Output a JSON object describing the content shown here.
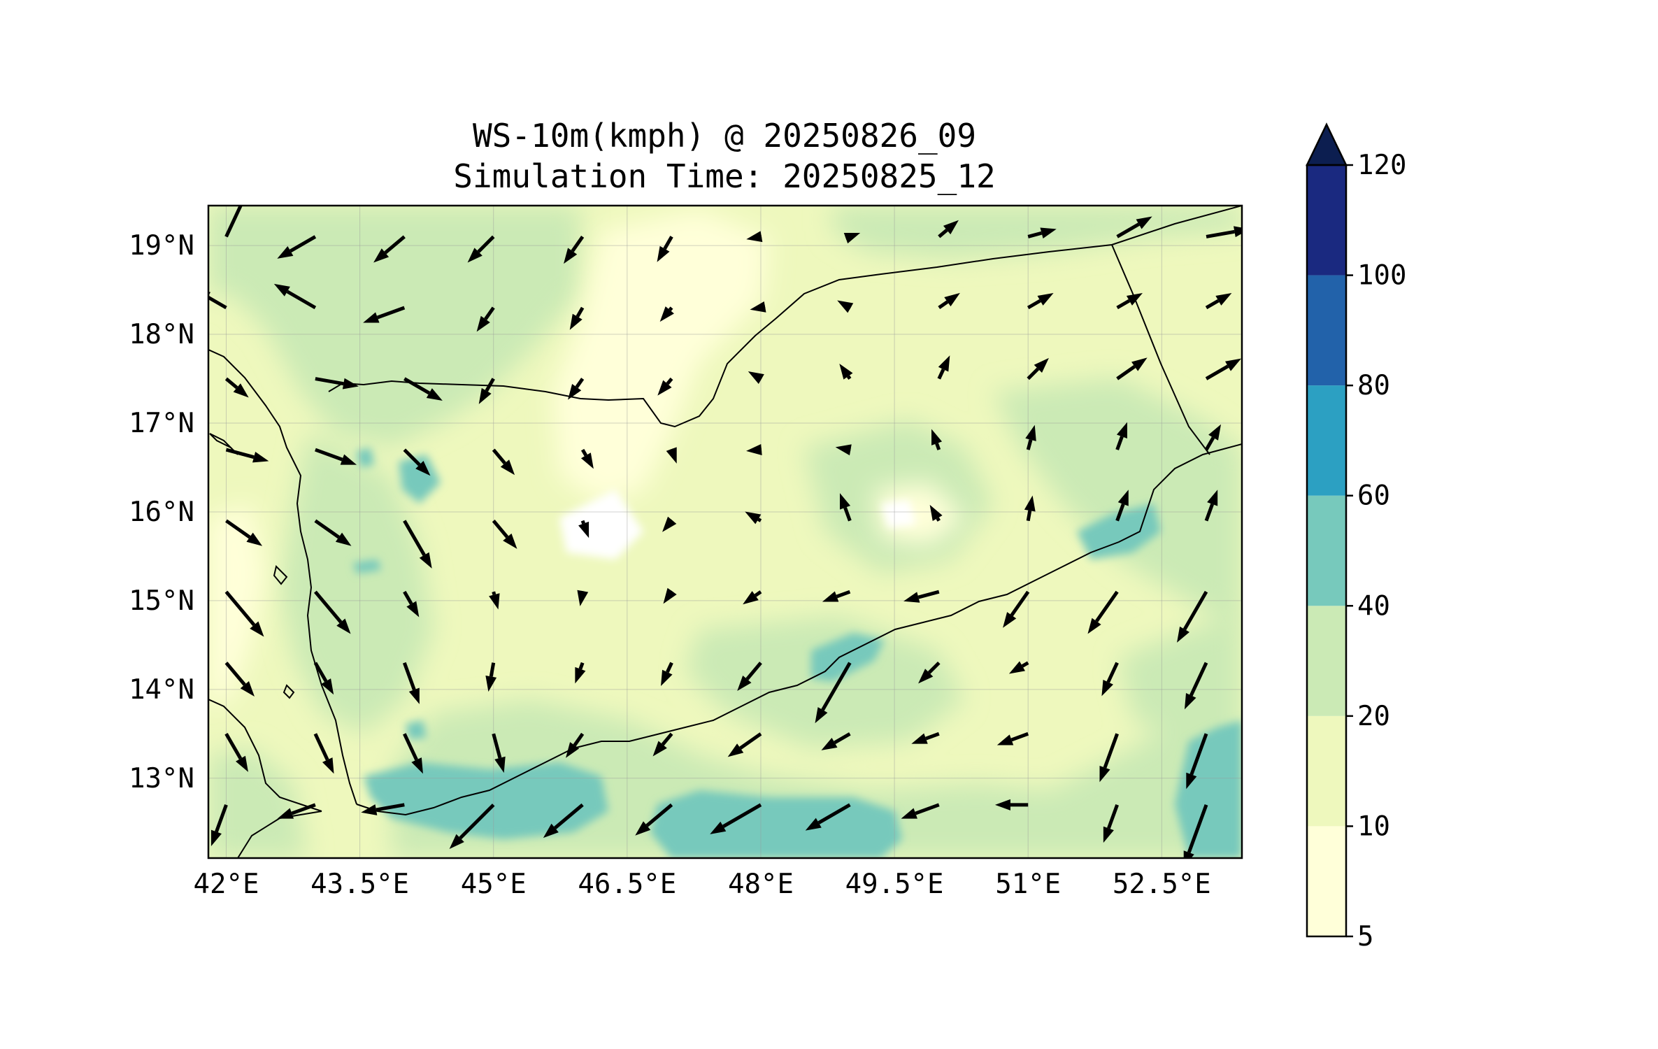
{
  "title": {
    "line1": "WS-10m(kmph) @ 20250826_09",
    "line2": "Simulation Time: 20250825_12"
  },
  "map": {
    "lon_range": [
      41.8,
      53.4
    ],
    "lat_range": [
      12.1,
      19.45
    ],
    "lon_ticks": [
      {
        "value": 42.0,
        "label": "42°E"
      },
      {
        "value": 43.5,
        "label": "43.5°E"
      },
      {
        "value": 45.0,
        "label": "45°E"
      },
      {
        "value": 46.5,
        "label": "46.5°E"
      },
      {
        "value": 48.0,
        "label": "48°E"
      },
      {
        "value": 49.5,
        "label": "49.5°E"
      },
      {
        "value": 51.0,
        "label": "51°E"
      },
      {
        "value": 52.5,
        "label": "52.5°E"
      }
    ],
    "lat_ticks": [
      {
        "value": 19,
        "label": "19°N"
      },
      {
        "value": 18,
        "label": "18°N"
      },
      {
        "value": 17,
        "label": "17°N"
      },
      {
        "value": 16,
        "label": "16°N"
      },
      {
        "value": 15,
        "label": "15°N"
      },
      {
        "value": 14,
        "label": "14°N"
      },
      {
        "value": 13,
        "label": "13°N"
      }
    ],
    "grid": true
  },
  "colorbar": {
    "levels": [
      {
        "from": 5,
        "to": 10,
        "color": "#ffffd9"
      },
      {
        "from": 10,
        "to": 20,
        "color": "#eef8bd"
      },
      {
        "from": 20,
        "to": 40,
        "color": "#cbeab5"
      },
      {
        "from": 40,
        "to": 60,
        "color": "#77c9bc"
      },
      {
        "from": 60,
        "to": 80,
        "color": "#2ca0c2"
      },
      {
        "from": 80,
        "to": 100,
        "color": "#2262aa"
      },
      {
        "from": 100,
        "to": 120,
        "color": "#1a2980"
      }
    ],
    "extend_color": "#0c1e50",
    "tick_labels": [
      "5",
      "10",
      "20",
      "40",
      "60",
      "80",
      "100",
      "120"
    ],
    "extend": "max"
  },
  "wind_vectors": [
    [
      42.0,
      19.1,
      160,
      25
    ],
    [
      43.0,
      19.1,
      60,
      240
    ],
    [
      44.0,
      19.1,
      55,
      230
    ],
    [
      45.0,
      19.1,
      50,
      225
    ],
    [
      46.0,
      19.1,
      45,
      215
    ],
    [
      47.0,
      19.1,
      40,
      210
    ],
    [
      48.0,
      19.1,
      20,
      260
    ],
    [
      49.0,
      19.1,
      15,
      70
    ],
    [
      50.0,
      19.1,
      35,
      50
    ],
    [
      51.0,
      19.1,
      40,
      75
    ],
    [
      52.0,
      19.1,
      55,
      60
    ],
    [
      53.0,
      19.1,
      60,
      80
    ],
    [
      42.0,
      18.3,
      50,
      300
    ],
    [
      43.0,
      18.3,
      65,
      300
    ],
    [
      44.0,
      18.3,
      60,
      250
    ],
    [
      45.0,
      18.3,
      40,
      215
    ],
    [
      46.0,
      18.3,
      35,
      210
    ],
    [
      47.0,
      18.3,
      25,
      220
    ],
    [
      48.0,
      18.3,
      15,
      260
    ],
    [
      49.0,
      18.3,
      20,
      300
    ],
    [
      50.0,
      18.3,
      35,
      55
    ],
    [
      51.0,
      18.3,
      40,
      60
    ],
    [
      52.0,
      18.3,
      40,
      60
    ],
    [
      53.0,
      18.3,
      40,
      60
    ],
    [
      42.0,
      17.5,
      40,
      130
    ],
    [
      43.0,
      17.5,
      60,
      100
    ],
    [
      44.0,
      17.5,
      60,
      120
    ],
    [
      45.0,
      17.5,
      40,
      210
    ],
    [
      46.0,
      17.5,
      35,
      215
    ],
    [
      47.0,
      17.5,
      30,
      220
    ],
    [
      48.0,
      17.5,
      20,
      300
    ],
    [
      49.0,
      17.5,
      25,
      325
    ],
    [
      50.0,
      17.5,
      35,
      25
    ],
    [
      51.0,
      17.5,
      40,
      45
    ],
    [
      52.0,
      17.5,
      50,
      55
    ],
    [
      53.0,
      17.5,
      55,
      60
    ],
    [
      42.0,
      16.7,
      60,
      105
    ],
    [
      43.0,
      16.7,
      60,
      110
    ],
    [
      44.0,
      16.7,
      50,
      135
    ],
    [
      45.0,
      16.7,
      45,
      140
    ],
    [
      46.0,
      16.7,
      30,
      150
    ],
    [
      47.0,
      16.7,
      20,
      160
    ],
    [
      48.0,
      16.7,
      20,
      265
    ],
    [
      49.0,
      16.7,
      20,
      280
    ],
    [
      50.0,
      16.7,
      30,
      340
    ],
    [
      51.0,
      16.7,
      35,
      15
    ],
    [
      52.0,
      16.7,
      40,
      20
    ],
    [
      53.0,
      16.7,
      40,
      30
    ],
    [
      42.0,
      15.9,
      60,
      125
    ],
    [
      43.0,
      15.9,
      60,
      125
    ],
    [
      44.0,
      15.9,
      75,
      150
    ],
    [
      45.0,
      15.9,
      50,
      140
    ],
    [
      46.0,
      15.9,
      25,
      160
    ],
    [
      47.0,
      15.9,
      20,
      220
    ],
    [
      48.0,
      15.9,
      25,
      300
    ],
    [
      49.0,
      15.9,
      40,
      340
    ],
    [
      50.0,
      15.9,
      25,
      330
    ],
    [
      51.0,
      15.9,
      35,
      10
    ],
    [
      52.0,
      15.9,
      45,
      20
    ],
    [
      53.0,
      15.9,
      45,
      20
    ],
    [
      42.0,
      15.1,
      80,
      140
    ],
    [
      43.0,
      15.1,
      75,
      140
    ],
    [
      44.0,
      15.1,
      40,
      150
    ],
    [
      45.0,
      15.1,
      25,
      165
    ],
    [
      46.0,
      15.1,
      20,
      190
    ],
    [
      47.0,
      15.1,
      20,
      215
    ],
    [
      48.0,
      15.1,
      30,
      235
    ],
    [
      49.0,
      15.1,
      40,
      250
    ],
    [
      50.0,
      15.1,
      50,
      255
    ],
    [
      51.0,
      15.1,
      60,
      215
    ],
    [
      52.0,
      15.1,
      70,
      215
    ],
    [
      53.0,
      15.1,
      80,
      210
    ],
    [
      42.0,
      14.3,
      60,
      140
    ],
    [
      43.0,
      14.3,
      50,
      150
    ],
    [
      44.0,
      14.3,
      60,
      160
    ],
    [
      45.0,
      14.3,
      40,
      190
    ],
    [
      46.0,
      14.3,
      30,
      200
    ],
    [
      47.0,
      14.3,
      35,
      205
    ],
    [
      48.0,
      14.3,
      50,
      220
    ],
    [
      49.0,
      14.3,
      95,
      210
    ],
    [
      50.0,
      14.3,
      40,
      225
    ],
    [
      51.0,
      14.3,
      30,
      240
    ],
    [
      52.0,
      14.3,
      50,
      205
    ],
    [
      53.0,
      14.3,
      70,
      205
    ],
    [
      42.0,
      13.5,
      60,
      150
    ],
    [
      43.0,
      13.5,
      60,
      155
    ],
    [
      44.0,
      13.5,
      60,
      155
    ],
    [
      45.0,
      13.5,
      55,
      165
    ],
    [
      46.0,
      13.5,
      40,
      215
    ],
    [
      47.0,
      13.5,
      40,
      220
    ],
    [
      48.0,
      13.5,
      55,
      235
    ],
    [
      49.0,
      13.5,
      45,
      240
    ],
    [
      50.0,
      13.5,
      40,
      250
    ],
    [
      51.0,
      13.5,
      45,
      250
    ],
    [
      52.0,
      13.5,
      70,
      200
    ],
    [
      53.0,
      13.5,
      80,
      200
    ],
    [
      42.0,
      12.7,
      60,
      200
    ],
    [
      43.0,
      12.7,
      55,
      250
    ],
    [
      44.0,
      12.7,
      60,
      260
    ],
    [
      45.0,
      12.7,
      85,
      225
    ],
    [
      46.0,
      12.7,
      70,
      230
    ],
    [
      47.0,
      12.7,
      65,
      230
    ],
    [
      48.0,
      12.7,
      80,
      240
    ],
    [
      49.0,
      12.7,
      70,
      240
    ],
    [
      50.0,
      12.7,
      55,
      250
    ],
    [
      51.0,
      12.7,
      45,
      270
    ],
    [
      52.0,
      12.7,
      55,
      200
    ],
    [
      53.0,
      12.7,
      90,
      200
    ]
  ]
}
